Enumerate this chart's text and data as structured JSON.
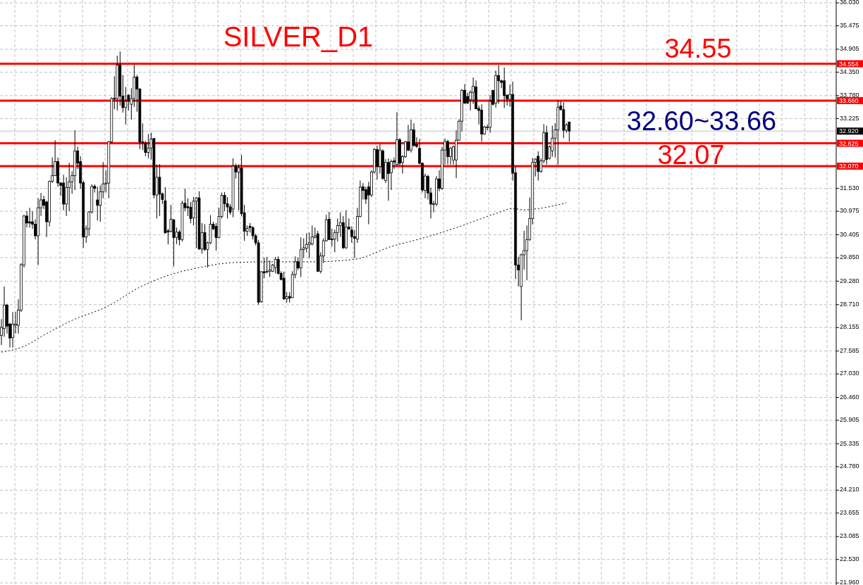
{
  "chart_data": {
    "type": "candlestick",
    "title": "SILVER_D1",
    "categories": [
      null,
      null,
      null,
      null,
      null,
      null,
      null,
      null,
      null,
      null,
      null,
      null,
      null,
      null,
      null,
      null,
      null,
      null,
      null,
      null,
      null,
      null,
      null,
      null,
      null,
      null,
      null,
      null,
      null,
      null,
      null,
      null,
      null,
      null,
      null,
      null,
      null,
      null,
      null,
      null,
      null,
      null,
      null,
      null,
      null,
      null,
      null,
      null,
      null,
      null,
      null,
      null,
      null,
      null,
      null,
      null,
      null,
      null,
      null,
      null,
      null,
      null,
      null,
      null,
      null,
      null,
      null,
      null,
      null,
      null,
      null,
      null,
      null,
      null,
      null,
      null,
      null,
      null,
      null,
      null,
      null,
      null,
      null,
      null,
      null,
      null,
      null,
      null,
      null,
      null,
      null,
      null,
      null,
      null,
      null,
      null,
      null,
      null,
      null,
      null,
      null,
      null,
      null,
      null,
      null,
      null,
      null,
      null,
      null,
      null,
      null,
      null,
      null,
      null,
      null,
      null,
      null,
      null,
      null,
      null,
      null,
      null,
      null,
      null,
      null,
      null,
      null,
      null,
      null,
      null,
      null,
      null,
      null,
      null,
      null,
      null,
      null,
      null,
      null,
      null,
      null,
      null,
      null,
      null,
      null,
      null,
      null,
      null,
      null,
      null,
      null,
      null,
      null,
      null,
      null,
      null,
      null,
      null,
      null,
      null,
      null,
      null,
      null,
      null,
      null,
      null,
      null,
      null,
      null,
      null,
      null,
      null,
      null,
      null,
      null,
      null,
      null,
      null,
      null,
      null,
      null,
      null,
      null,
      null,
      null,
      null,
      null,
      null,
      null,
      null,
      null,
      null,
      null,
      null,
      null,
      null,
      null,
      null,
      null,
      null,
      null,
      null,
      null,
      null,
      null,
      null,
      null,
      null,
      null,
      null,
      null,
      null,
      null,
      null,
      null,
      null,
      null,
      null,
      null,
      null,
      null,
      null,
      null,
      null,
      null,
      null,
      null,
      null,
      null,
      null,
      null,
      null,
      null,
      null,
      null,
      null,
      null,
      null,
      null,
      null,
      null,
      null,
      null,
      null,
      null,
      null,
      null,
      null,
      null,
      null,
      null,
      null,
      null,
      null,
      null,
      null,
      null,
      null,
      null,
      null,
      null,
      null,
      null,
      null,
      null,
      null,
      null,
      null,
      null,
      null,
      null,
      null,
      null,
      null,
      null,
      null,
      null,
      null,
      null,
      null,
      null,
      null,
      null,
      null,
      null,
      null,
      null,
      null,
      null,
      null,
      null,
      null,
      null,
      null,
      null,
      null
    ],
    "ohlc": [
      [
        27.96,
        28.36,
        27.73,
        28.16
      ],
      [
        28.13,
        29.15,
        27.93,
        28.7
      ],
      [
        28.7,
        28.73,
        28.01,
        28.19
      ],
      [
        28.24,
        28.27,
        27.67,
        27.9
      ],
      [
        27.91,
        28.53,
        27.67,
        28.24
      ],
      [
        28.21,
        28.53,
        28.01,
        28.24
      ],
      [
        28.21,
        28.84,
        28.01,
        28.58
      ],
      [
        28.58,
        29.72,
        28.53,
        29.68
      ],
      [
        29.67,
        30.89,
        29.61,
        30.86
      ],
      [
        30.86,
        30.98,
        30.58,
        30.69
      ],
      [
        30.72,
        31.06,
        30.58,
        30.69
      ],
      [
        30.72,
        30.98,
        30.55,
        30.66
      ],
      [
        30.66,
        30.78,
        30.29,
        30.38
      ],
      [
        30.38,
        31.29,
        29.67,
        31.06
      ],
      [
        31.06,
        31.42,
        30.86,
        31.25
      ],
      [
        31.26,
        31.35,
        31.03,
        31.12
      ],
      [
        31.2,
        31.23,
        30.35,
        30.72
      ],
      [
        30.72,
        31.72,
        30.61,
        31.7
      ],
      [
        31.7,
        32.28,
        31.66,
        31.84
      ],
      [
        31.84,
        32.7,
        31.83,
        32.18
      ],
      [
        32.18,
        32.28,
        31.57,
        31.66
      ],
      [
        31.66,
        31.69,
        31.35,
        31.6
      ],
      [
        31.66,
        31.86,
        31.0,
        31.15
      ],
      [
        31.15,
        31.8,
        30.86,
        31.55
      ],
      [
        31.55,
        32.15,
        30.98,
        31.69
      ],
      [
        31.69,
        31.95,
        31.4,
        31.84
      ],
      [
        31.84,
        32.94,
        31.49,
        32.44
      ],
      [
        32.44,
        32.54,
        32.0,
        32.14
      ],
      [
        32.18,
        32.31,
        31.52,
        31.66
      ],
      [
        31.67,
        31.72,
        30.09,
        30.35
      ],
      [
        30.35,
        30.63,
        30.21,
        30.55
      ],
      [
        30.55,
        30.98,
        30.38,
        30.96
      ],
      [
        30.96,
        31.63,
        30.92,
        31.58
      ],
      [
        31.58,
        31.63,
        31.43,
        31.53
      ],
      [
        31.25,
        31.57,
        30.75,
        31.12
      ],
      [
        31.12,
        31.6,
        30.72,
        31.45
      ],
      [
        31.45,
        32.17,
        31.29,
        31.64
      ],
      [
        31.64,
        31.97,
        31.43,
        31.66
      ],
      [
        31.66,
        32.68,
        31.29,
        32.66
      ],
      [
        32.66,
        33.74,
        32.63,
        33.71
      ],
      [
        33.72,
        34.25,
        33.45,
        33.7
      ],
      [
        33.71,
        34.75,
        33.42,
        34.52
      ],
      [
        34.53,
        34.85,
        33.54,
        33.77
      ],
      [
        33.77,
        34.28,
        33.37,
        33.49
      ],
      [
        33.49,
        33.99,
        33.08,
        33.64
      ],
      [
        33.79,
        33.82,
        33.42,
        33.65
      ],
      [
        33.57,
        33.96,
        33.2,
        33.71
      ],
      [
        33.71,
        34.53,
        33.51,
        34.23
      ],
      [
        34.23,
        34.28,
        33.39,
        33.94
      ],
      [
        33.94,
        33.96,
        32.48,
        32.66
      ],
      [
        32.66,
        33.11,
        32.46,
        32.64
      ],
      [
        32.63,
        32.68,
        32.31,
        32.4
      ],
      [
        32.4,
        32.85,
        32.26,
        32.51
      ],
      [
        32.51,
        32.88,
        32.23,
        32.73
      ],
      [
        32.74,
        32.75,
        31.29,
        31.37
      ],
      [
        31.37,
        32.11,
        30.8,
        31.8
      ],
      [
        31.8,
        32.12,
        30.86,
        31.39
      ],
      [
        31.4,
        31.43,
        31.15,
        31.26
      ],
      [
        31.23,
        31.56,
        30.44,
        30.45
      ],
      [
        30.5,
        30.55,
        30.17,
        30.47
      ],
      [
        30.49,
        31.13,
        30.46,
        30.78
      ],
      [
        30.77,
        30.78,
        29.64,
        30.34
      ],
      [
        30.34,
        30.58,
        30.18,
        30.47
      ],
      [
        30.47,
        30.52,
        30.15,
        30.29
      ],
      [
        30.29,
        31.23,
        30.24,
        31.17
      ],
      [
        31.17,
        31.52,
        30.98,
        31.06
      ],
      [
        31.09,
        31.29,
        30.86,
        31.06
      ],
      [
        31.07,
        31.2,
        30.69,
        30.8
      ],
      [
        30.82,
        31.32,
        30.63,
        31.22
      ],
      [
        31.22,
        31.32,
        30.09,
        31.3
      ],
      [
        31.3,
        31.46,
        30.04,
        30.06
      ],
      [
        30.06,
        30.69,
        29.95,
        30.46
      ],
      [
        30.46,
        30.66,
        30.01,
        30.05
      ],
      [
        30.05,
        30.24,
        29.61,
        30.21
      ],
      [
        30.21,
        30.88,
        30.18,
        30.66
      ],
      [
        30.66,
        30.72,
        30.52,
        30.55
      ],
      [
        30.61,
        30.69,
        30.02,
        30.34
      ],
      [
        30.34,
        31.06,
        30.32,
        30.85
      ],
      [
        30.85,
        31.43,
        30.8,
        31.36
      ],
      [
        31.36,
        31.44,
        30.98,
        31.16
      ],
      [
        31.16,
        31.32,
        30.8,
        31.08
      ],
      [
        31.08,
        31.15,
        30.89,
        30.95
      ],
      [
        31.03,
        32.26,
        30.83,
        32.07
      ],
      [
        32.06,
        32.13,
        31.77,
        31.93
      ],
      [
        31.92,
        32.11,
        31.0,
        32.03
      ],
      [
        32.03,
        32.34,
        30.85,
        30.92
      ],
      [
        30.94,
        31.13,
        30.26,
        30.49
      ],
      [
        30.49,
        30.63,
        30.38,
        30.56
      ],
      [
        30.61,
        30.69,
        30.46,
        30.58
      ],
      [
        30.58,
        30.61,
        30.29,
        30.38
      ],
      [
        30.38,
        30.43,
        30.15,
        30.21
      ],
      [
        30.21,
        30.28,
        28.71,
        28.77
      ],
      [
        28.78,
        29.52,
        28.76,
        29.51
      ],
      [
        29.51,
        29.85,
        29.35,
        29.48
      ],
      [
        29.5,
        29.87,
        29.47,
        29.52
      ],
      [
        29.52,
        29.78,
        29.38,
        29.55
      ],
      [
        29.52,
        29.7,
        29.5,
        29.67
      ],
      [
        29.61,
        29.87,
        29.47,
        29.81
      ],
      [
        29.81,
        29.88,
        29.44,
        29.47
      ],
      [
        29.47,
        29.52,
        29.3,
        29.32
      ],
      [
        29.35,
        29.51,
        28.82,
        28.85
      ],
      [
        28.85,
        29.01,
        28.76,
        28.9
      ],
      [
        28.91,
        29.01,
        28.76,
        28.87
      ],
      [
        28.88,
        29.52,
        28.87,
        29.44
      ],
      [
        29.44,
        29.88,
        29.35,
        29.75
      ],
      [
        29.75,
        29.85,
        29.55,
        29.6
      ],
      [
        29.6,
        30.34,
        29.38,
        30.05
      ],
      [
        30.05,
        30.32,
        29.84,
        30.09
      ],
      [
        30.08,
        30.44,
        29.98,
        30.17
      ],
      [
        30.17,
        30.46,
        29.84,
        30.21
      ],
      [
        30.18,
        30.63,
        30.15,
        30.35
      ],
      [
        30.34,
        30.58,
        30.32,
        30.38
      ],
      [
        30.43,
        30.5,
        29.5,
        29.52
      ],
      [
        29.52,
        29.98,
        29.47,
        29.89
      ],
      [
        29.89,
        30.32,
        29.72,
        30.26
      ],
      [
        30.26,
        30.89,
        30.24,
        30.77
      ],
      [
        30.78,
        30.96,
        30.28,
        30.29
      ],
      [
        30.3,
        30.55,
        30.12,
        30.29
      ],
      [
        30.3,
        30.53,
        29.98,
        30.46
      ],
      [
        30.46,
        30.8,
        30.24,
        30.63
      ],
      [
        30.63,
        30.95,
        30.35,
        30.7
      ],
      [
        30.7,
        30.86,
        30.06,
        30.09
      ],
      [
        30.09,
        31.0,
        30.06,
        30.59
      ],
      [
        30.59,
        30.8,
        30.52,
        30.55
      ],
      [
        30.52,
        30.61,
        30.21,
        30.36
      ],
      [
        30.36,
        30.52,
        29.84,
        30.32
      ],
      [
        30.3,
        31.06,
        30.21,
        30.85
      ],
      [
        30.85,
        31.72,
        30.83,
        31.56
      ],
      [
        31.57,
        31.66,
        31.26,
        31.48
      ],
      [
        31.5,
        31.57,
        31.15,
        31.27
      ],
      [
        31.57,
        31.69,
        30.66,
        31.37
      ],
      [
        31.37,
        31.97,
        31.32,
        31.93
      ],
      [
        31.93,
        32.51,
        31.89,
        32.47
      ],
      [
        32.47,
        32.57,
        31.74,
        32.06
      ],
      [
        32.06,
        32.6,
        31.89,
        32.46
      ],
      [
        32.44,
        32.48,
        31.74,
        31.77
      ],
      [
        31.72,
        32.24,
        31.66,
        32.16
      ],
      [
        32.16,
        32.26,
        31.23,
        31.89
      ],
      [
        31.91,
        32.23,
        31.49,
        32.18
      ],
      [
        32.2,
        32.28,
        32.0,
        32.17
      ],
      [
        32.11,
        33.38,
        32.09,
        32.71
      ],
      [
        32.71,
        32.75,
        32.09,
        32.14
      ],
      [
        32.16,
        32.34,
        31.89,
        32.3
      ],
      [
        32.3,
        32.68,
        32.27,
        32.66
      ],
      [
        32.66,
        33.07,
        32.43,
        32.46
      ],
      [
        32.46,
        33.2,
        32.4,
        32.95
      ],
      [
        32.95,
        33.11,
        32.54,
        32.57
      ],
      [
        32.59,
        32.77,
        32.51,
        32.55
      ],
      [
        32.5,
        32.73,
        32.11,
        32.14
      ],
      [
        32.14,
        32.16,
        31.43,
        31.49
      ],
      [
        31.48,
        31.89,
        31.29,
        31.83
      ],
      [
        31.82,
        31.86,
        31.26,
        31.42
      ],
      [
        31.42,
        31.55,
        30.8,
        31.15
      ],
      [
        31.14,
        31.23,
        30.95,
        31.16
      ],
      [
        31.15,
        31.83,
        31.1,
        31.76
      ],
      [
        31.76,
        31.97,
        31.46,
        31.53
      ],
      [
        31.53,
        32.54,
        31.49,
        32.46
      ],
      [
        32.46,
        32.74,
        32.11,
        32.67
      ],
      [
        32.67,
        32.71,
        32.11,
        32.3
      ],
      [
        32.3,
        32.54,
        32.11,
        32.5
      ],
      [
        32.22,
        32.57,
        32.11,
        32.54
      ],
      [
        32.22,
        32.94,
        31.78,
        32.7
      ],
      [
        32.7,
        33.21,
        32.68,
        33.16
      ],
      [
        33.16,
        33.94,
        32.91,
        33.91
      ],
      [
        33.91,
        34.06,
        33.58,
        33.6
      ],
      [
        33.76,
        33.85,
        33.58,
        33.6
      ],
      [
        33.68,
        33.91,
        33.42,
        33.86
      ],
      [
        33.86,
        34.22,
        33.58,
        34.01
      ],
      [
        33.99,
        34.15,
        33.45,
        33.46
      ],
      [
        33.47,
        33.54,
        33.08,
        33.42
      ],
      [
        33.43,
        33.57,
        32.66,
        32.85
      ],
      [
        32.85,
        33.05,
        32.83,
        33.02
      ],
      [
        33.01,
        33.08,
        32.94,
        33.02
      ],
      [
        33.01,
        33.79,
        32.88,
        33.64
      ],
      [
        33.91,
        33.91,
        33.54,
        33.57
      ],
      [
        33.6,
        34.39,
        33.49,
        34.27
      ],
      [
        34.27,
        34.52,
        33.58,
        34.14
      ],
      [
        34.14,
        34.17,
        33.96,
        34.1
      ],
      [
        34.14,
        34.46,
        33.48,
        33.78
      ],
      [
        33.79,
        33.82,
        33.54,
        33.7
      ],
      [
        33.69,
        34.05,
        33.51,
        33.81
      ],
      [
        33.81,
        34.12,
        31.72,
        31.9
      ],
      [
        31.91,
        32.06,
        29.33,
        29.67
      ],
      [
        29.67,
        29.87,
        29.15,
        29.55
      ],
      [
        29.15,
        29.95,
        28.33,
        29.92
      ],
      [
        29.92,
        30.5,
        29.56,
        30.02
      ],
      [
        30.02,
        30.63,
        29.3,
        30.29
      ],
      [
        30.29,
        31.31,
        30.26,
        30.8
      ],
      [
        30.8,
        32.27,
        30.66,
        32.16
      ],
      [
        32.16,
        32.26,
        31.82,
        32.24
      ],
      [
        32.31,
        32.43,
        31.72,
        31.94
      ],
      [
        31.94,
        32.26,
        31.91,
        32.2
      ],
      [
        32.2,
        33.09,
        32.14,
        32.88
      ],
      [
        32.88,
        33.05,
        32.11,
        32.23
      ],
      [
        32.26,
        32.57,
        32.23,
        32.54
      ],
      [
        32.44,
        33.05,
        32.3,
        32.75
      ],
      [
        32.75,
        33.11,
        32.28,
        32.95
      ],
      [
        32.95,
        33.66,
        32.11,
        33.5
      ],
      [
        33.53,
        33.64,
        33.42,
        33.44
      ],
      [
        33.44,
        33.62,
        32.75,
        32.94
      ],
      [
        32.94,
        33.11,
        32.88,
        33.07
      ],
      [
        33.14,
        33.15,
        32.66,
        32.92
      ],
      null,
      null,
      null,
      null,
      null,
      null,
      null,
      null,
      null,
      null,
      null,
      null,
      null,
      null,
      null,
      null,
      null,
      null,
      null,
      null,
      null,
      null,
      null,
      null,
      null,
      null,
      null,
      null,
      null,
      null,
      null,
      null,
      null,
      null,
      null,
      null,
      null,
      null,
      null,
      null,
      null,
      null,
      null,
      null,
      null,
      null,
      null,
      null,
      null,
      null,
      null,
      null,
      null,
      null,
      null,
      null,
      null,
      null,
      null,
      null,
      null,
      null,
      null,
      null,
      null,
      null,
      null,
      null,
      null,
      null,
      null,
      null,
      null,
      null,
      null,
      null,
      null,
      null,
      null,
      null,
      null,
      null,
      null,
      null,
      null,
      null,
      null,
      null,
      null,
      null,
      null,
      null,
      null,
      null
    ],
    "series": [
      {
        "type": "line",
        "color": "#000000",
        "line_style": "dotted",
        "values": [
          27.56,
          null,
          null,
          null,
          null,
          null,
          null,
          null,
          27.7,
          null,
          null,
          null,
          null,
          null,
          null,
          27.97,
          null,
          null,
          null,
          null,
          null,
          null,
          null,
          null,
          null,
          28.33,
          null,
          null,
          null,
          null,
          null,
          null,
          null,
          null,
          null,
          null,
          null,
          28.65,
          null,
          null,
          null,
          null,
          null,
          null,
          null,
          null,
          null,
          null,
          null,
          null,
          29.17,
          null,
          null,
          null,
          null,
          null,
          null,
          null,
          null,
          null,
          29.44,
          null,
          null,
          null,
          null,
          null,
          null,
          null,
          null,
          null,
          29.61,
          null,
          null,
          null,
          null,
          null,
          null,
          null,
          null,
          null,
          null,
          null,
          29.73,
          null,
          null,
          null,
          null,
          null,
          null,
          null,
          null,
          null,
          null,
          null,
          null,
          29.75,
          null,
          null,
          null,
          null,
          null,
          null,
          null,
          null,
          null,
          null,
          null,
          null,
          null,
          null,
          29.75,
          null,
          null,
          null,
          null,
          null,
          null,
          null,
          null,
          null,
          null,
          null,
          null,
          null,
          null,
          29.81,
          null,
          null,
          null,
          null,
          null,
          null,
          null,
          null,
          null,
          null,
          null,
          null,
          30.12,
          null,
          null,
          null,
          null,
          null,
          null,
          null,
          null,
          null,
          null,
          null,
          30.34,
          null,
          null,
          null,
          null,
          null,
          null,
          null,
          null,
          null,
          null,
          null,
          30.6,
          null,
          null,
          null,
          null,
          null,
          null,
          null,
          null,
          null,
          null,
          null,
          null,
          30.92,
          null,
          null,
          null,
          null,
          null,
          31.04,
          null,
          null,
          null,
          31.01,
          null,
          null,
          null,
          null,
          31.04,
          null,
          null,
          null,
          null,
          null,
          null,
          null,
          null,
          null,
          31.18,
          null,
          null,
          null,
          null,
          null,
          null,
          null,
          null,
          null,
          null,
          null,
          null,
          null,
          null,
          null,
          null,
          null,
          null,
          null,
          null,
          null,
          null,
          null,
          null,
          null,
          null,
          null,
          null,
          null,
          null,
          null,
          null,
          null,
          null,
          null,
          null,
          null,
          null,
          null,
          null,
          null,
          null,
          null,
          null,
          null,
          null,
          null,
          null,
          null,
          null,
          null,
          null,
          null,
          null,
          null,
          null,
          null,
          null,
          null,
          null,
          null,
          null,
          null,
          null,
          null,
          null,
          null,
          null,
          null,
          null,
          null,
          null,
          null,
          null,
          null,
          null,
          null,
          null,
          null,
          null,
          null,
          null,
          null,
          null,
          null,
          null,
          null,
          null,
          null,
          null,
          null,
          null,
          null,
          null,
          null
        ]
      }
    ],
    "ylim": [
      21.91,
      36.1
    ],
    "yticks": [
      {
        "value": 36.03,
        "label": "36.030"
      },
      35.475,
      34.905,
      {
        "value": 34.35,
        "label": "34.350"
      },
      {
        "value": 33.78,
        "label": "33.780"
      },
      33.225,
      {
        "value": 31.53,
        "label": "31.530"
      },
      30.975,
      30.405,
      {
        "value": 29.85,
        "label": "29.850"
      },
      {
        "value": 29.28,
        "label": "29.280"
      },
      {
        "value": 28.71,
        "label": "28.710"
      },
      28.155,
      27.585,
      {
        "value": 27.03,
        "label": "27.030"
      },
      {
        "value": 26.46,
        "label": "26.460"
      },
      25.905,
      25.335,
      {
        "value": 24.78,
        "label": "24.780"
      },
      {
        "value": 24.21,
        "label": "24.210"
      },
      23.655,
      23.085,
      {
        "value": 22.53,
        "label": "22.530"
      },
      {
        "value": 21.96,
        "label": "21.960"
      }
    ],
    "ref_lines": [
      {
        "axis": "y",
        "value": 34.554,
        "label": "34.554",
        "color": "#ff0000"
      },
      {
        "axis": "y",
        "value": 33.66,
        "label": "33.660",
        "color": "#ff0000"
      },
      {
        "axis": "y",
        "value": 32.92,
        "label": "32.920",
        "color": "#c0c0c0"
      },
      {
        "axis": "y",
        "value": 32.625,
        "label": "32.625",
        "color": "#ff0000"
      },
      {
        "axis": "y",
        "value": 32.07,
        "label": "32.070",
        "color": "#ff0000"
      }
    ],
    "annotations": [
      "34.55",
      "32.60~33.66",
      "32.07"
    ],
    "grid": true,
    "tick_labels": "y"
  }
}
